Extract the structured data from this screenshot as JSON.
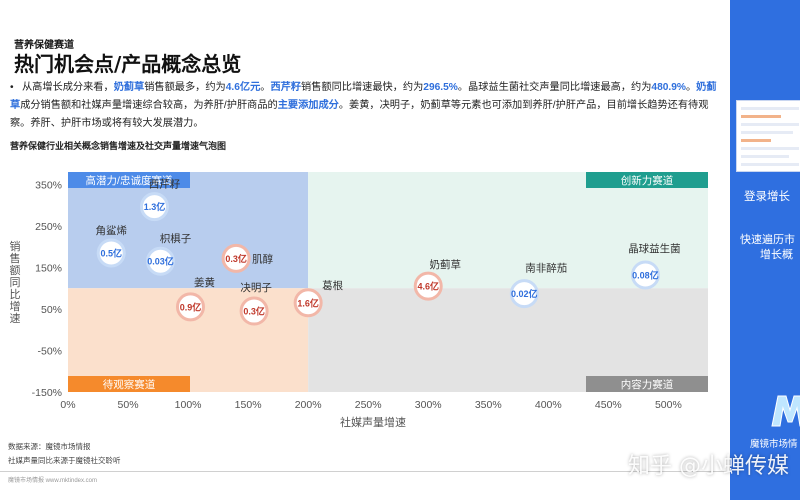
{
  "header": {
    "section": "营养保健赛道",
    "title": "热门机会点/产品概念总览"
  },
  "description": {
    "bullet": "•",
    "segments": [
      {
        "text": "从高增长成分来看，",
        "hl": false
      },
      {
        "text": "奶蓟草",
        "hl": true
      },
      {
        "text": "销售额最多，约为",
        "hl": false
      },
      {
        "text": "4.6亿元",
        "hl": true
      },
      {
        "text": "。",
        "hl": false
      },
      {
        "text": "西芹籽",
        "hl": true
      },
      {
        "text": "销售额同比增速最快，约为",
        "hl": false
      },
      {
        "text": "296.5%",
        "hl": true
      },
      {
        "text": "。晶球益生菌社交声量同比增速最高，约为",
        "hl": false
      },
      {
        "text": "480.9%",
        "hl": true
      },
      {
        "text": "。",
        "hl": false
      },
      {
        "text": "奶蓟草",
        "hl": true
      },
      {
        "text": "成分销售额和社媒声量增速综合较高，为养肝/护肝商品的",
        "hl": false
      },
      {
        "text": "主要添加成分",
        "hl": true
      },
      {
        "text": "。姜黄，决明子，奶蓟草等元素也可添加到养肝/护肝产品，目前增长趋势还有待观察。养肝、护肝市场或将有较大发展潜力。",
        "hl": false
      }
    ]
  },
  "chart_data": {
    "type": "scatter",
    "title": "营养保健行业相关概念销售增速及社交声量增速气泡图",
    "xlabel": "社媒声量增速",
    "ylabel": "销售额同比增速",
    "xlim": [
      0,
      533
    ],
    "ylim": [
      -150,
      380
    ],
    "x_ticks": [
      "0%",
      "50%",
      "100%",
      "150%",
      "200%",
      "250%",
      "300%",
      "350%",
      "400%",
      "450%",
      "500%"
    ],
    "y_ticks": [
      "-150%",
      "-50%",
      "50%",
      "150%",
      "250%",
      "350%"
    ],
    "quadrants": [
      {
        "name": "高潜力/忠诚度赛道",
        "color": "#4d8be8"
      },
      {
        "name": "创新力赛道",
        "color": "#1f9e8f"
      },
      {
        "name": "待观察赛道",
        "color": "#f58a2c"
      },
      {
        "name": "内容力赛道",
        "color": "#8f8f8f"
      }
    ],
    "points": [
      {
        "name": "西芹籽",
        "x": 72,
        "y": 296.5,
        "value": "1.3亿",
        "color": "#2f6fdc"
      },
      {
        "name": "角鲨烯",
        "x": 36,
        "y": 185,
        "value": "0.5亿",
        "color": "#2f6fdc"
      },
      {
        "name": "枳椇子",
        "x": 77,
        "y": 165,
        "value": "0.03亿",
        "color": "#2f6fdc"
      },
      {
        "name": "肌醇",
        "x": 140,
        "y": 172,
        "value": "0.3亿",
        "color": "#c0392b"
      },
      {
        "name": "姜黄",
        "x": 102,
        "y": 55,
        "value": "0.9亿",
        "color": "#c0392b"
      },
      {
        "name": "决明子",
        "x": 155,
        "y": 45,
        "value": "0.3亿",
        "color": "#c0392b"
      },
      {
        "name": "葛根",
        "x": 200,
        "y": 65,
        "value": "1.6亿",
        "color": "#c0392b"
      },
      {
        "name": "奶蓟草",
        "x": 300,
        "y": 105,
        "value": "4.6亿",
        "color": "#c0392b"
      },
      {
        "name": "南非醉茄",
        "x": 380,
        "y": 87,
        "value": "0.02亿",
        "color": "#2f6fdc"
      },
      {
        "name": "晶球益生菌",
        "x": 480.9,
        "y": 132,
        "value": "0.08亿",
        "color": "#2f6fdc"
      }
    ]
  },
  "footer": {
    "source": "数据来源：魔镜市场情报",
    "note": "社媒声量同比来源于魔镜社交聆听",
    "small": "魔镜市场情报  www.mktindex.com"
  },
  "side_panel": {
    "line1": "登录增长",
    "line2": "快速遍历市",
    "line3": "增长概",
    "brand": "魔镜市场情"
  },
  "watermark": "知乎 @小蝉传媒"
}
